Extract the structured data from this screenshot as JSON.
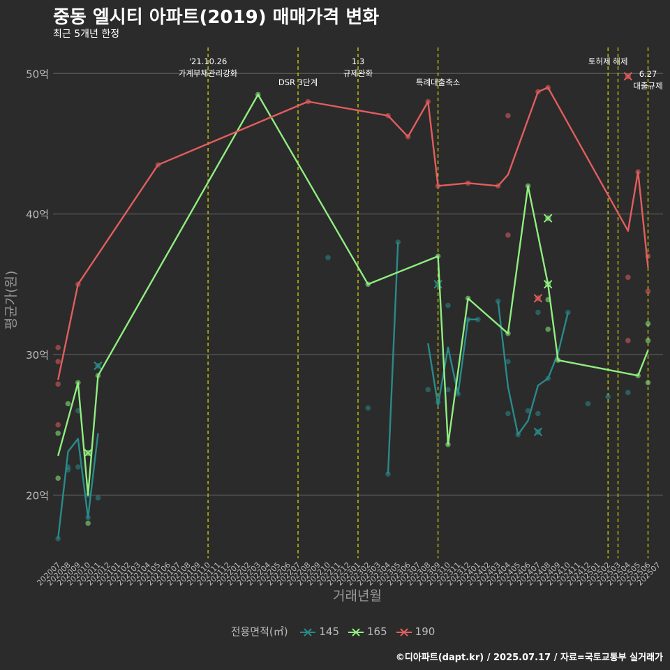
{
  "chart_data": {
    "type": "line",
    "title": "중동 엘시티 아파트(2019) 매매가격 변화",
    "subtitle": "최근 5개년 한정",
    "xlabel": "거래년월",
    "ylabel": "평균가(원)",
    "caption": "©디아파트(dapt.kr) / 2025.07.17 / 자료=국토교통부 실거래가",
    "legend_title": "전용면적(㎡)",
    "legend_position": "bottom",
    "grid": true,
    "categories": [
      "202007",
      "202008",
      "202009",
      "202010",
      "202011",
      "202012",
      "202101",
      "202102",
      "202103",
      "202104",
      "202105",
      "202106",
      "202107",
      "202108",
      "202109",
      "202110",
      "202111",
      "202112",
      "202201",
      "202202",
      "202203",
      "202204",
      "202205",
      "202206",
      "202207",
      "202208",
      "202209",
      "202210",
      "202211",
      "202212",
      "202301",
      "202302",
      "202303",
      "202304",
      "202305",
      "202306",
      "202307",
      "202308",
      "202309",
      "202310",
      "202311",
      "202312",
      "202401",
      "202402",
      "202403",
      "202404",
      "202405",
      "202406",
      "202407",
      "202408",
      "202409",
      "202410",
      "202411",
      "202412",
      "202501",
      "202502",
      "202503",
      "202504",
      "202505",
      "202506",
      "202507"
    ],
    "ylim": [
      15.5,
      52
    ],
    "y_ticks": [
      20,
      30,
      40,
      50
    ],
    "y_tick_labels": [
      "20억",
      "30억",
      "40억",
      "50억"
    ],
    "series": [
      {
        "name": "145",
        "color": "#2a8a8a",
        "lines": [
          [
            [
              "202007",
              16.9
            ],
            [
              "202008",
              23.1
            ],
            [
              "202009",
              24.0
            ],
            [
              "202010",
              18.4
            ],
            [
              "202011",
              24.4
            ]
          ],
          [
            [
              "202304",
              21.5
            ],
            [
              "202305",
              38.0
            ]
          ],
          [
            [
              "202308",
              30.8
            ],
            [
              "202309",
              26.4
            ],
            [
              "202310",
              30.5
            ],
            [
              "202311",
              27.2
            ],
            [
              "202312",
              32.5
            ],
            [
              "202401",
              32.5
            ]
          ],
          [
            [
              "202403",
              33.8
            ],
            [
              "202404",
              27.7
            ],
            [
              "202405",
              24.3
            ],
            [
              "202406",
              25.3
            ],
            [
              "202407",
              27.8
            ],
            [
              "202408",
              28.3
            ],
            [
              "202409",
              30.1
            ],
            [
              "202410",
              33.0
            ]
          ]
        ],
        "points": [
          [
            "202007",
            16.9
          ],
          [
            "202008",
            22.0
          ],
          [
            "202008",
            21.8
          ],
          [
            "202009",
            22.0
          ],
          [
            "202009",
            26.0
          ],
          [
            "202010",
            18.4
          ],
          [
            "202010",
            20.0
          ],
          [
            "202011",
            19.8
          ],
          [
            "202304",
            21.5
          ],
          [
            "202305",
            38.0
          ],
          [
            "202210",
            36.9
          ],
          [
            "202302",
            26.2
          ],
          [
            "202308",
            27.5
          ],
          [
            "202309",
            26.6
          ],
          [
            "202310",
            33.5
          ],
          [
            "202310",
            27.5
          ],
          [
            "202311",
            27.2
          ],
          [
            "202312",
            32.5
          ],
          [
            "202401",
            32.5
          ],
          [
            "202403",
            33.8
          ],
          [
            "202404",
            25.8
          ],
          [
            "202404",
            29.5
          ],
          [
            "202405",
            24.3
          ],
          [
            "202406",
            26.0
          ],
          [
            "202407",
            25.8
          ],
          [
            "202407",
            33.0
          ],
          [
            "202408",
            28.3
          ],
          [
            "202410",
            33.0
          ],
          [
            "202412",
            26.5
          ],
          [
            "202502",
            27.0
          ],
          [
            "202504",
            27.3
          ]
        ],
        "cancelled": [
          [
            "202011",
            29.2
          ],
          [
            "202309",
            35.0
          ],
          [
            "202407",
            24.5
          ]
        ]
      },
      {
        "name": "165",
        "color": "#90ee80",
        "lines": [
          [
            [
              "202007",
              22.8
            ],
            [
              "202009",
              28.0
            ],
            [
              "202010",
              20.0
            ],
            [
              "202011",
              28.5
            ],
            [
              "202203",
              48.5
            ],
            [
              "202302",
              35.0
            ],
            [
              "202309",
              37.0
            ],
            [
              "202310",
              23.6
            ],
            [
              "202312",
              34.0
            ],
            [
              "202404",
              31.5
            ],
            [
              "202406",
              42.0
            ],
            [
              "202408",
              35.0
            ],
            [
              "202409",
              29.6
            ],
            [
              "202505",
              28.5
            ],
            [
              "202506",
              30.3
            ]
          ]
        ],
        "points": [
          [
            "202007",
            24.4
          ],
          [
            "202007",
            21.2
          ],
          [
            "202008",
            26.5
          ],
          [
            "202009",
            28.0
          ],
          [
            "202010",
            18.0
          ],
          [
            "202011",
            28.5
          ],
          [
            "202203",
            48.5
          ],
          [
            "202302",
            35.0
          ],
          [
            "202309",
            37.0
          ],
          [
            "202310",
            23.6
          ],
          [
            "202312",
            34.0
          ],
          [
            "202404",
            31.5
          ],
          [
            "202406",
            42.0
          ],
          [
            "202408",
            33.9
          ],
          [
            "202408",
            31.8
          ],
          [
            "202409",
            29.6
          ],
          [
            "202505",
            28.5
          ],
          [
            "202506",
            32.2
          ],
          [
            "202506",
            31.0
          ],
          [
            "202506",
            28.0
          ]
        ],
        "cancelled": [
          [
            "202010",
            23.0
          ],
          [
            "202408",
            39.7
          ],
          [
            "202408",
            35.0
          ]
        ]
      },
      {
        "name": "190",
        "color": "#e35d5d",
        "lines": [
          [
            [
              "202007",
              28.2
            ],
            [
              "202009",
              35.0
            ],
            [
              "202105",
              43.5
            ],
            [
              "202208",
              48.0
            ],
            [
              "202304",
              47.0
            ],
            [
              "202306",
              45.5
            ],
            [
              "202308",
              48.0
            ],
            [
              "202309",
              42.0
            ],
            [
              "202312",
              42.2
            ],
            [
              "202403",
              42.0
            ],
            [
              "202404",
              42.8
            ],
            [
              "202407",
              48.7
            ],
            [
              "202408",
              49.0
            ],
            [
              "202504",
              38.8
            ],
            [
              "202505",
              43.0
            ],
            [
              "202506",
              36.2
            ]
          ]
        ],
        "points": [
          [
            "202007",
            30.5
          ],
          [
            "202007",
            29.5
          ],
          [
            "202007",
            27.9
          ],
          [
            "202007",
            25.0
          ],
          [
            "202009",
            35.0
          ],
          [
            "202105",
            43.5
          ],
          [
            "202208",
            48.0
          ],
          [
            "202304",
            47.0
          ],
          [
            "202306",
            45.5
          ],
          [
            "202308",
            48.0
          ],
          [
            "202309",
            42.0
          ],
          [
            "202312",
            42.2
          ],
          [
            "202403",
            42.0
          ],
          [
            "202404",
            47.0
          ],
          [
            "202404",
            38.5
          ],
          [
            "202407",
            48.7
          ],
          [
            "202408",
            49.0
          ],
          [
            "202504",
            35.5
          ],
          [
            "202504",
            31.0
          ],
          [
            "202505",
            43.0
          ],
          [
            "202506",
            37.0
          ],
          [
            "202506",
            34.5
          ]
        ],
        "cancelled": [
          [
            "202407",
            34.0
          ],
          [
            "202504",
            49.8
          ]
        ]
      }
    ],
    "events": [
      {
        "x": "202110",
        "lines": [
          "'21.10.26",
          "가계부채관리강화"
        ],
        "level": 0
      },
      {
        "x": "202207",
        "lines": [
          "DSR 3단계"
        ],
        "level": 1
      },
      {
        "x": "202301",
        "lines": [
          "1.3",
          "규제완화"
        ],
        "level": 0
      },
      {
        "x": "202309",
        "lines": [
          "특례대출축소"
        ],
        "level": 1
      },
      {
        "x": "202502",
        "lines": [
          "토허제 해제"
        ],
        "level": 0
      },
      {
        "x": "202503",
        "lines": [],
        "level": 0
      },
      {
        "x": "202506",
        "lines": [
          "6.27",
          "대출규제"
        ],
        "level": 2
      }
    ],
    "event_line_color": "#d4d400"
  }
}
